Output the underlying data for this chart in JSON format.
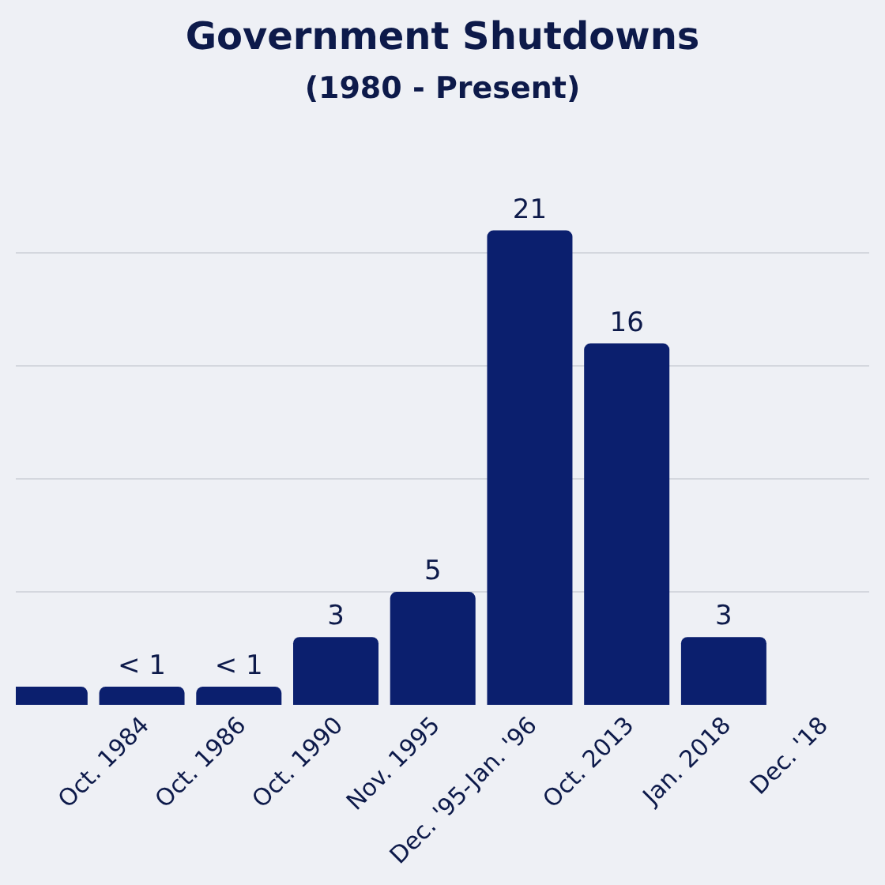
{
  "chart_data": {
    "type": "bar",
    "title": "Government Shutdowns",
    "subtitle": "(1980 - Present)",
    "categories": [
      null,
      "Oct. 1984",
      "Oct. 1986",
      "Oct. 1990",
      "Nov. 1995",
      "Dec. '95-Jan. '96",
      "Oct. 2013",
      "Jan. 2018",
      "Dec. '18"
    ],
    "values": [
      0.8,
      0.8,
      0.8,
      3,
      5,
      21,
      16,
      3,
      null
    ],
    "value_labels": [
      null,
      "< 1",
      "< 1",
      "3",
      "5",
      "21",
      "16",
      "3",
      null
    ],
    "color": "#0b1f6e",
    "grid": "y",
    "tick_labels": "x"
  }
}
